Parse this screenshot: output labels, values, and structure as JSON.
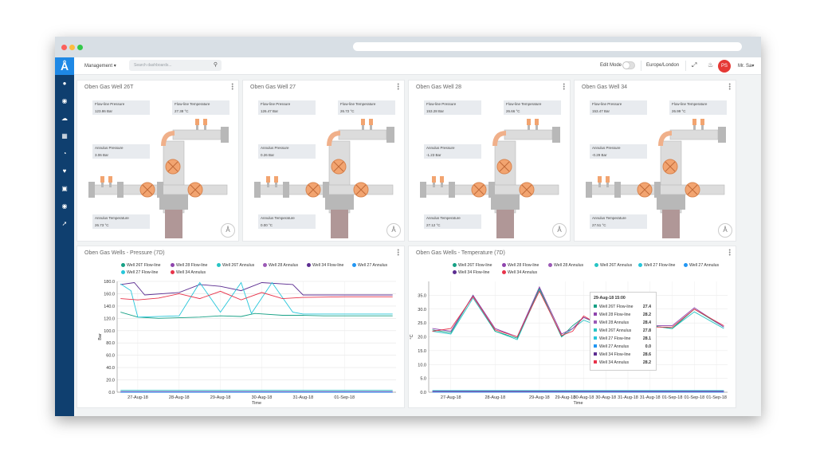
{
  "nav": {
    "management": "Management ▾",
    "search_placeholder": "Search dashboards...",
    "edit_mode": "Edit Mode",
    "timezone": "Europe/London",
    "avatar_initials": "PS",
    "user": "Mr. Sa▾"
  },
  "colors": {
    "26t_flow": "#16a085",
    "28_flow": "#8e44ad",
    "26t_ann": "#27c4c4",
    "28_ann": "#9b59b6",
    "34_flow": "#5c2d91",
    "27_ann": "#2196f3",
    "27_flow": "#26c6da",
    "34_ann": "#e8334a"
  },
  "wells": [
    {
      "title": "Oben Gas Well 26T",
      "flow_pressure_label": "Flow-line Pressure",
      "flow_pressure": "123.86 Bar",
      "flow_temp_label": "Flow-line Temperature",
      "flow_temp": "27.38 °C",
      "ann_pressure_label": "Annulus Pressure",
      "ann_pressure": "3.06 Bar",
      "ann_temp_label": "Annulus Temperature",
      "ann_temp": "26.73 °C"
    },
    {
      "title": "Oben Gas Well 27",
      "flow_pressure_label": "Flow-line Pressure",
      "flow_pressure": "126.47 Bar",
      "flow_temp_label": "Flow-line Temperature",
      "flow_temp": "26.72 °C",
      "ann_pressure_label": "Annulus Pressure",
      "ann_pressure": "0.26 Bar",
      "ann_temp_label": "Annulus Temperature",
      "ann_temp": "0.00 °C"
    },
    {
      "title": "Oben Gas Well 28",
      "flow_pressure_label": "Flow-line Pressure",
      "flow_pressure": "153.28 Bar",
      "flow_temp_label": "Flow-line Temperature",
      "flow_temp": "26.66 °C",
      "ann_pressure_label": "Annulus Pressure",
      "ann_pressure": "-1.23 Bar",
      "ann_temp_label": "Annulus Temperature",
      "ann_temp": "27.12 °C"
    },
    {
      "title": "Oben Gas Well 34",
      "flow_pressure_label": "Flow-line Pressure",
      "flow_pressure": "153.47 Bar",
      "flow_temp_label": "Flow-line Temperature",
      "flow_temp": "26.99 °C",
      "ann_pressure_label": "Annulus Pressure",
      "ann_pressure": "-0.29 Bar",
      "ann_temp_label": "Annulus Temperature",
      "ann_temp": "27.51 °C"
    }
  ],
  "chart_data": [
    {
      "type": "line",
      "title": "Oben Gas Wells - Pressure (7D)",
      "xlabel": "Time",
      "ylabel": "Bar",
      "xlim": [
        "26-Aug-18 12:00",
        "02-Sep-18 06:00"
      ],
      "ylim": [
        0,
        180
      ],
      "yticks": [
        "0.0",
        "20.0",
        "40.0",
        "60.0",
        "80.0",
        "100.0",
        "120.0",
        "140.0",
        "160.0",
        "180.0"
      ],
      "xticks": [
        {
          "label": "27-Aug-18",
          "x": "27-Aug-18"
        },
        {
          "label": "28-Aug-18",
          "x": "28-Aug-18"
        },
        {
          "label": "29-Aug-18",
          "x": "29-Aug-18"
        },
        {
          "label": "30-Aug-18",
          "x": "30-Aug-18"
        },
        {
          "label": "31-Aug-18",
          "x": "31-Aug-18"
        },
        {
          "label": "01-Sep-18",
          "x": "01-Sep-18"
        }
      ],
      "grid": true,
      "legend_position": "top",
      "series": [
        {
          "name": "Well 26T Flow-line",
          "color": "#16a085",
          "points": [
            [
              "26-Aug-18 14:00",
              130
            ],
            [
              "27-Aug-18 00:00",
              122
            ],
            [
              "27-Aug-18 12:00",
              120
            ],
            [
              "28-Aug-18 00:00",
              121
            ],
            [
              "28-Aug-18 12:00",
              122
            ],
            [
              "29-Aug-18 00:00",
              124
            ],
            [
              "29-Aug-18 12:00",
              123
            ],
            [
              "29-Aug-18 20:00",
              128
            ],
            [
              "30-Aug-18 12:00",
              125
            ],
            [
              "31-Aug-18 00:00",
              125
            ],
            [
              "31-Aug-18 12:00",
              124
            ],
            [
              "01-Sep-18 00:00",
              124
            ],
            [
              "01-Sep-18 12:00",
              124
            ],
            [
              "02-Sep-18 04:00",
              124
            ]
          ]
        },
        {
          "name": "Well 28 Flow-line",
          "color": "#8e44ad",
          "points": [
            [
              "26-Aug-18 14:00",
              1
            ],
            [
              "02-Sep-18 04:00",
              1
            ]
          ]
        },
        {
          "name": "Well 26T Annulus",
          "color": "#27c4c4",
          "points": [
            [
              "26-Aug-18 14:00",
              3
            ],
            [
              "02-Sep-18 04:00",
              3
            ]
          ]
        },
        {
          "name": "Well 28 Annulus",
          "color": "#9b59b6",
          "points": [
            [
              "26-Aug-18 14:00",
              0
            ],
            [
              "02-Sep-18 04:00",
              0
            ]
          ]
        },
        {
          "name": "Well 34 Flow-line",
          "color": "#5c2d91",
          "points": [
            [
              "26-Aug-18 14:00",
              175
            ],
            [
              "26-Aug-18 22:00",
              178
            ],
            [
              "27-Aug-18 04:00",
              158
            ],
            [
              "28-Aug-18 00:00",
              162
            ],
            [
              "28-Aug-18 12:00",
              175
            ],
            [
              "29-Aug-18 00:00",
              172
            ],
            [
              "29-Aug-18 12:00",
              165
            ],
            [
              "30-Aug-18 00:00",
              178
            ],
            [
              "30-Aug-18 18:00",
              175
            ],
            [
              "31-Aug-18 00:00",
              158
            ],
            [
              "02-Sep-18 04:00",
              158
            ]
          ]
        },
        {
          "name": "Well 27 Annulus",
          "color": "#2196f3",
          "points": [
            [
              "26-Aug-18 14:00",
              0
            ],
            [
              "02-Sep-18 04:00",
              0
            ]
          ]
        },
        {
          "name": "Well 27 Flow-line",
          "color": "#26c6da",
          "points": [
            [
              "26-Aug-18 14:00",
              176
            ],
            [
              "26-Aug-18 20:00",
              165
            ],
            [
              "27-Aug-18 00:00",
              122
            ],
            [
              "28-Aug-18 00:00",
              124
            ],
            [
              "28-Aug-18 12:00",
              178
            ],
            [
              "29-Aug-18 00:00",
              130
            ],
            [
              "29-Aug-18 12:00",
              178
            ],
            [
              "29-Aug-18 18:00",
              128
            ],
            [
              "30-Aug-18 06:00",
              178
            ],
            [
              "30-Aug-18 18:00",
              130
            ],
            [
              "31-Aug-18 00:00",
              127
            ],
            [
              "02-Sep-18 04:00",
              127
            ]
          ]
        },
        {
          "name": "Well 34 Annulus",
          "color": "#e8334a",
          "points": [
            [
              "26-Aug-18 14:00",
              152
            ],
            [
              "27-Aug-18 00:00",
              150
            ],
            [
              "27-Aug-18 12:00",
              153
            ],
            [
              "28-Aug-18 00:00",
              160
            ],
            [
              "28-Aug-18 12:00",
              152
            ],
            [
              "29-Aug-18 00:00",
              164
            ],
            [
              "29-Aug-18 12:00",
              150
            ],
            [
              "30-Aug-18 00:00",
              162
            ],
            [
              "30-Aug-18 12:00",
              152
            ],
            [
              "31-Aug-18 00:00",
              154
            ],
            [
              "01-Sep-18 00:00",
              155
            ],
            [
              "02-Sep-18 04:00",
              155
            ]
          ]
        }
      ]
    },
    {
      "type": "line",
      "title": "Oben Gas Wells - Temperature (7D)",
      "xlabel": "Time",
      "ylabel": "°C",
      "xlim": [
        "26-Aug-18 12:00",
        "02-Sep-18 06:00"
      ],
      "ylim": [
        0,
        40
      ],
      "yticks": [
        "0.0",
        "5.0",
        "10.0",
        "15.0",
        "20.0",
        "25.0",
        "30.0",
        "35.0"
      ],
      "xticks": [
        {
          "label": "27-Aug-18",
          "x": "27-Aug-18"
        },
        {
          "label": "28-Aug-18",
          "x": "28-Aug-18"
        },
        {
          "label": "29-Aug-18",
          "x": "29-Aug-18"
        },
        {
          "label": "29-Aug-18",
          "x": "29-Aug-18 14:00"
        },
        {
          "label": "30-Aug-18",
          "x": "30-Aug-18"
        },
        {
          "label": "30-Aug-18",
          "x": "30-Aug-18 12:00"
        },
        {
          "label": "31-Aug-18",
          "x": "31-Aug-18"
        },
        {
          "label": "31-Aug-18",
          "x": "31-Aug-18 12:00"
        },
        {
          "label": "01-Sep-18",
          "x": "01-Sep-18"
        },
        {
          "label": "01-Sep-18",
          "x": "01-Sep-18 12:00"
        },
        {
          "label": "01-Sep-18",
          "x": "02-Sep-18 00:00"
        }
      ],
      "grid": true,
      "legend_position": "top",
      "tooltip": {
        "title": "29-Aug-18 15:00",
        "rows": [
          {
            "name": "Well 26T Flow-line",
            "value": "27.4",
            "color": "#16a085"
          },
          {
            "name": "Well 28 Flow-line",
            "value": "28.2",
            "color": "#8e44ad"
          },
          {
            "name": "Well 28 Annulus",
            "value": "28.4",
            "color": "#9b59b6"
          },
          {
            "name": "Well 26T Annulus",
            "value": "27.8",
            "color": "#27c4c4"
          },
          {
            "name": "Well 27 Flow-line",
            "value": "28.1",
            "color": "#26c6da"
          },
          {
            "name": "Well 27 Annulus",
            "value": "0.0",
            "color": "#2196f3"
          },
          {
            "name": "Well 34 Flow-line",
            "value": "28.6",
            "color": "#5c2d91"
          },
          {
            "name": "Well 34 Annulus",
            "value": "28.2",
            "color": "#e8334a"
          }
        ]
      },
      "series": [
        {
          "name": "Well 26T Annulus",
          "color": "#27c4c4",
          "points": [
            [
              "26-Aug-18 14:00",
              22
            ],
            [
              "27-Aug-18 00:00",
              21
            ],
            [
              "27-Aug-18 12:00",
              34
            ],
            [
              "28-Aug-18 00:00",
              22
            ],
            [
              "28-Aug-18 12:00",
              19
            ],
            [
              "29-Aug-18 00:00",
              37
            ],
            [
              "29-Aug-18 12:00",
              20
            ],
            [
              "29-Aug-18 18:00",
              23
            ],
            [
              "30-Aug-18 00:00",
              26
            ],
            [
              "30-Aug-18 12:00",
              23
            ],
            [
              "31-Aug-18 00:00",
              23
            ],
            [
              "31-Aug-18 12:00",
              24
            ],
            [
              "01-Sep-18 00:00",
              23
            ],
            [
              "01-Sep-18 12:00",
              29
            ],
            [
              "02-Sep-18 04:00",
              23
            ]
          ]
        },
        {
          "name": "Well 26T Flow-line",
          "color": "#16a085",
          "points": [
            [
              "26-Aug-18 14:00",
              22.5
            ],
            [
              "27-Aug-18 00:00",
              21.5
            ],
            [
              "27-Aug-18 12:00",
              35
            ],
            [
              "28-Aug-18 00:00",
              22
            ],
            [
              "28-Aug-18 12:00",
              19.5
            ],
            [
              "29-Aug-18 00:00",
              37.5
            ],
            [
              "29-Aug-18 12:00",
              20
            ],
            [
              "29-Aug-18 18:00",
              24
            ],
            [
              "30-Aug-18 00:00",
              27
            ],
            [
              "30-Aug-18 12:00",
              23.5
            ],
            [
              "31-Aug-18 00:00",
              23
            ],
            [
              "31-Aug-18 12:00",
              24
            ],
            [
              "01-Sep-18 00:00",
              23
            ],
            [
              "01-Sep-18 12:00",
              30
            ],
            [
              "02-Sep-18 04:00",
              23.5
            ]
          ]
        },
        {
          "name": "Well 28 Flow-line",
          "color": "#8e44ad",
          "points": [
            [
              "26-Aug-18 14:00",
              23
            ],
            [
              "27-Aug-18 00:00",
              22
            ],
            [
              "27-Aug-18 12:00",
              35
            ],
            [
              "28-Aug-18 00:00",
              23
            ],
            [
              "28-Aug-18 12:00",
              20
            ],
            [
              "29-Aug-18 00:00",
              38
            ],
            [
              "29-Aug-18 12:00",
              21
            ],
            [
              "29-Aug-18 18:00",
              23
            ],
            [
              "30-Aug-18 00:00",
              27
            ],
            [
              "30-Aug-18 12:00",
              24
            ],
            [
              "31-Aug-18 00:00",
              23.5
            ],
            [
              "31-Aug-18 12:00",
              24
            ],
            [
              "01-Sep-18 00:00",
              24
            ],
            [
              "01-Sep-18 12:00",
              30.5
            ],
            [
              "02-Sep-18 04:00",
              23.5
            ]
          ]
        },
        {
          "name": "Well 34 Annulus",
          "color": "#e8334a",
          "points": [
            [
              "26-Aug-18 14:00",
              22
            ],
            [
              "27-Aug-18 00:00",
              23
            ],
            [
              "27-Aug-18 12:00",
              34.5
            ],
            [
              "28-Aug-18 00:00",
              22.5
            ],
            [
              "28-Aug-18 12:00",
              20
            ],
            [
              "29-Aug-18 00:00",
              36.5
            ],
            [
              "29-Aug-18 12:00",
              20.5
            ],
            [
              "29-Aug-18 18:00",
              22
            ],
            [
              "30-Aug-18 00:00",
              27.5
            ],
            [
              "30-Aug-18 12:00",
              23
            ],
            [
              "31-Aug-18 00:00",
              23
            ],
            [
              "31-Aug-18 12:00",
              23.5
            ],
            [
              "01-Sep-18 00:00",
              23.5
            ],
            [
              "01-Sep-18 12:00",
              30
            ],
            [
              "02-Sep-18 04:00",
              24
            ]
          ]
        },
        {
          "name": "Well 27 Annulus",
          "color": "#2196f3",
          "points": [
            [
              "26-Aug-18 14:00",
              0
            ],
            [
              "02-Sep-18 04:00",
              0
            ]
          ]
        },
        {
          "name": "Well 28 Annulus",
          "color": "#9b59b6",
          "points": [
            [
              "26-Aug-18 14:00",
              0.2
            ],
            [
              "02-Sep-18 04:00",
              0.2
            ]
          ]
        },
        {
          "name": "Well 34 Flow-line",
          "color": "#5c2d91",
          "points": [
            [
              "26-Aug-18 14:00",
              0.4
            ],
            [
              "02-Sep-18 04:00",
              0.4
            ]
          ]
        },
        {
          "name": "Well 27 Flow-line",
          "color": "#26c6da",
          "points": [
            [
              "26-Aug-18 14:00",
              0.6
            ],
            [
              "02-Sep-18 04:00",
              0.6
            ]
          ]
        }
      ]
    }
  ]
}
